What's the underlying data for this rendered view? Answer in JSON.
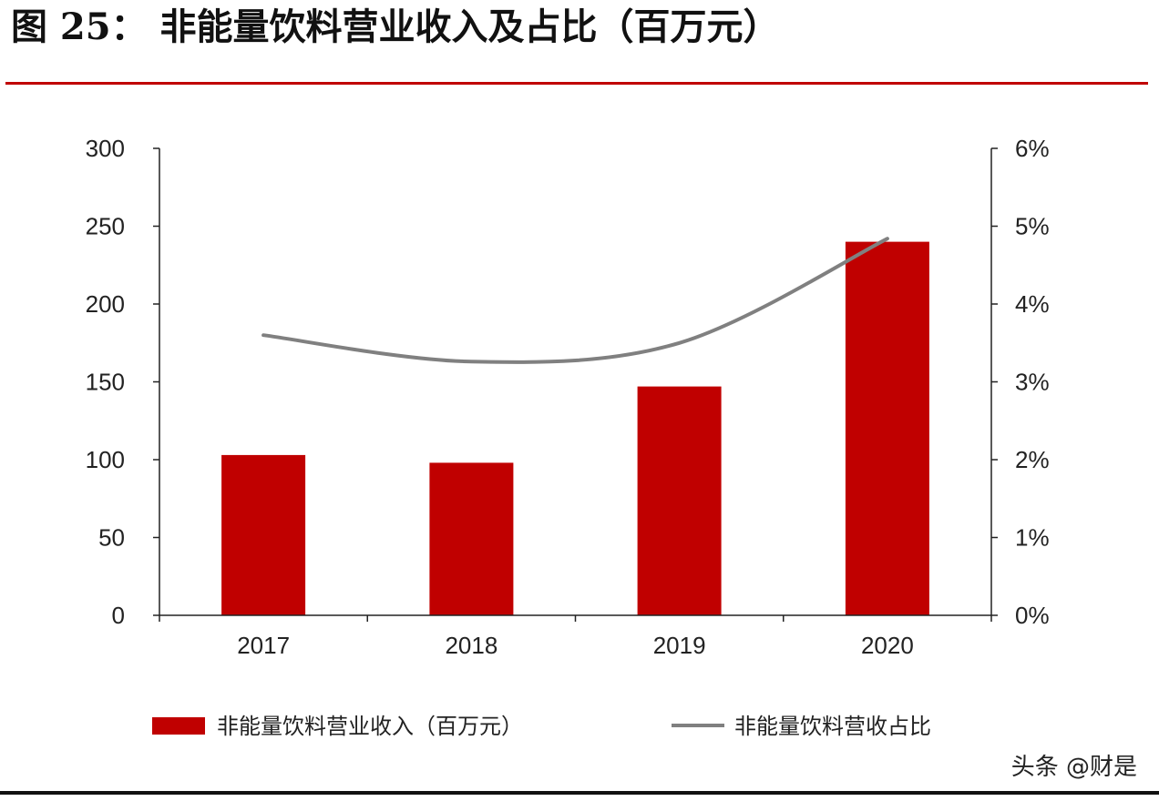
{
  "figure": {
    "title": "图 25： 非能量饮料营业收入及占比（百万元）",
    "watermark": "头条 @财是"
  },
  "colors": {
    "bar": "#c00000",
    "line": "#808080",
    "axis": "#222222",
    "title_rule": "#c00000"
  },
  "chart_data": {
    "type": "bar",
    "title": "",
    "xlabel": "",
    "ylabel": "",
    "y2label": "",
    "categories": [
      "2017",
      "2018",
      "2019",
      "2020"
    ],
    "ylim": [
      0,
      300
    ],
    "y2lim": [
      0,
      0.06
    ],
    "yticks": [
      "0",
      "50",
      "100",
      "150",
      "200",
      "250",
      "300"
    ],
    "y2ticks": [
      "0%",
      "1%",
      "2%",
      "3%",
      "4%",
      "5%",
      "6%"
    ],
    "grid": false,
    "legend_position": "bottom",
    "series": [
      {
        "name": "非能量饮料营业收入（百万元）",
        "type": "bar",
        "axis": "left",
        "values": [
          103,
          98,
          147,
          240
        ]
      },
      {
        "name": "非能量饮料营收占比",
        "type": "line",
        "axis": "right",
        "values": [
          0.036,
          0.0326,
          0.035,
          0.0484
        ]
      }
    ]
  }
}
